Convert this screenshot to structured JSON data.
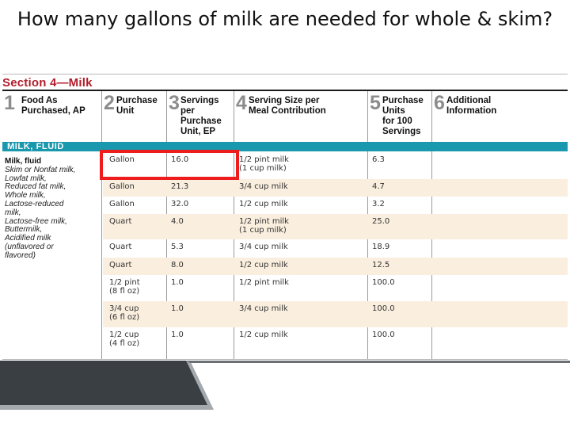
{
  "slide": {
    "title": "How many gallons of milk are needed for whole & skim?"
  },
  "section": {
    "title": "Section 4—Milk"
  },
  "columns": [
    {
      "num": "1",
      "label": "Food As\nPurchased, AP"
    },
    {
      "num": "2",
      "label": "Purchase\nUnit"
    },
    {
      "num": "3",
      "label": "Servings\nper\nPurchase\nUnit, EP"
    },
    {
      "num": "4",
      "label": "Serving Size per\nMeal Contribution"
    },
    {
      "num": "5",
      "label": "Purchase\nUnits\nfor 100\nServings"
    },
    {
      "num": "6",
      "label": "Additional\nInformation"
    }
  ],
  "band": {
    "label": "MILK, FLUID"
  },
  "food_item": {
    "title": "Milk, fluid",
    "lines": [
      "Skim or Nonfat milk,",
      "Lowfat milk,",
      "Reduced fat milk,",
      "Whole milk,",
      "Lactose-reduced",
      "milk,",
      "Lactose-free milk,",
      "Buttermilk,",
      "Acidified milk",
      "(unflavored or",
      "flavored)"
    ]
  },
  "rows": [
    {
      "unit": "Gallon",
      "servings": "16.0",
      "size": [
        "1/2 pint milk",
        "(1 cup milk)"
      ],
      "units100": "6.3",
      "shaded": false
    },
    {
      "unit": "Gallon",
      "servings": "21.3",
      "size": [
        "3/4 cup milk"
      ],
      "units100": "4.7",
      "shaded": true
    },
    {
      "unit": "Gallon",
      "servings": "32.0",
      "size": [
        "1/2 cup milk"
      ],
      "units100": "3.2",
      "shaded": false
    },
    {
      "unit": "Quart",
      "servings": "4.0",
      "size": [
        "1/2 pint milk",
        "(1 cup milk)"
      ],
      "units100": "25.0",
      "shaded": true
    },
    {
      "unit": "Quart",
      "servings": "5.3",
      "size": [
        "3/4 cup milk"
      ],
      "units100": "18.9",
      "shaded": false
    },
    {
      "unit": "Quart",
      "servings": "8.0",
      "size": [
        "1/2 cup milk"
      ],
      "units100": "12.5",
      "shaded": true
    },
    {
      "unit": "1/2 pint\n(8 fl oz)",
      "servings": "1.0",
      "size": [
        "1/2 pint milk"
      ],
      "units100": "100.0",
      "shaded": false
    },
    {
      "unit": "3/4 cup\n(6 fl oz)",
      "servings": "1.0",
      "size": [
        "3/4 cup milk"
      ],
      "units100": "100.0",
      "shaded": true
    },
    {
      "unit": "1/2 cup\n(4 fl oz)",
      "servings": "1.0",
      "size": [
        "1/2 cup milk"
      ],
      "units100": "100.0",
      "shaded": false
    }
  ],
  "colors": {
    "section_title": "#b21d2a",
    "band": "#1a98ad",
    "shaded_row": "#faeede",
    "highlight_box": "#ee1c1c",
    "slide_bar_dark": "#3a3f44",
    "slide_bar_light": "#a4a9ad"
  }
}
